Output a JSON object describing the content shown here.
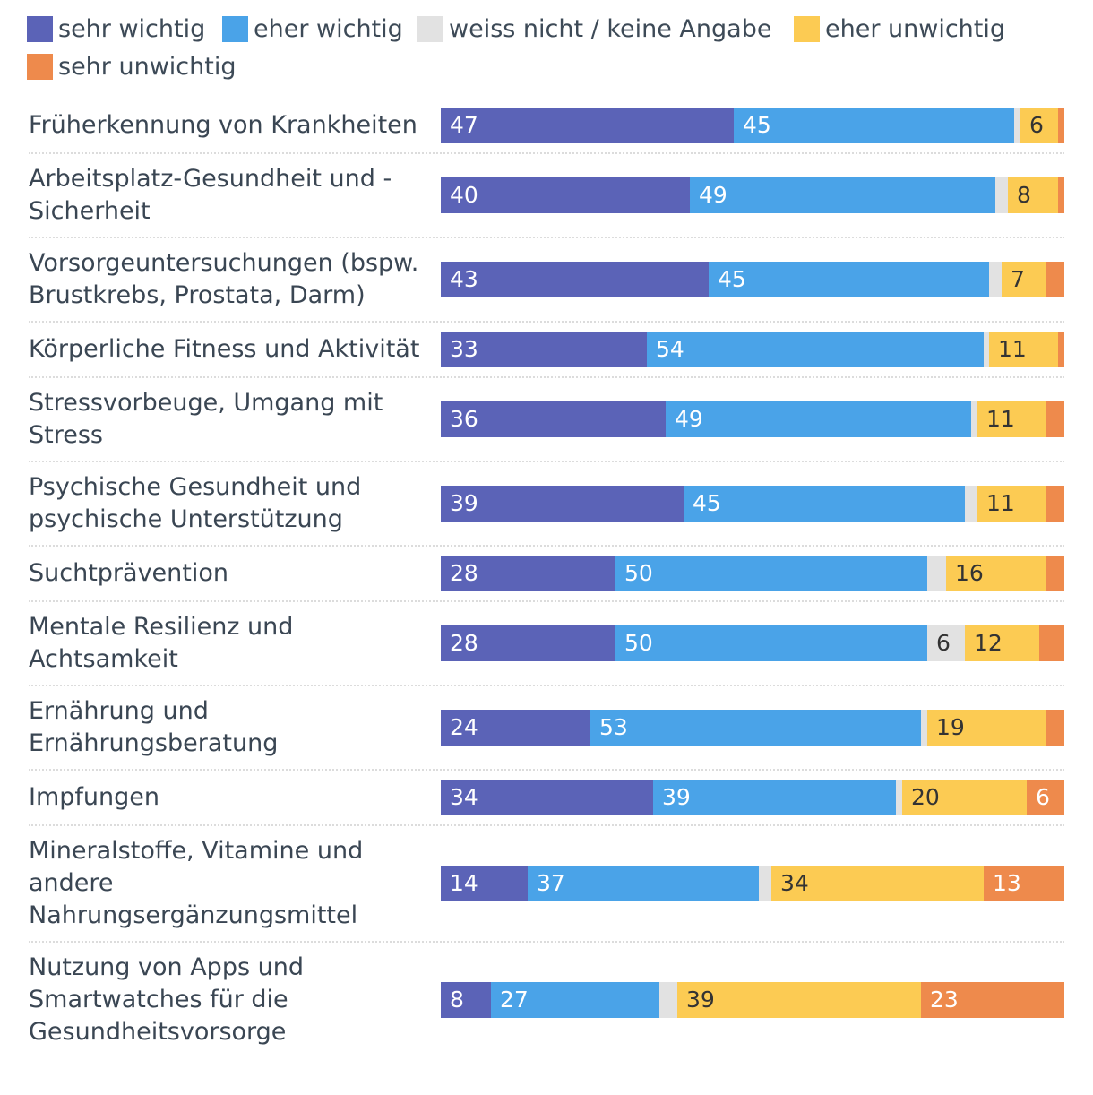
{
  "chart_data": {
    "type": "bar",
    "orientation": "horizontal",
    "stacked": true,
    "legend_position": "top",
    "series": [
      {
        "name": "sehr wichtig",
        "color": "#5b63b7",
        "label_color": "#ffffff",
        "values": [
          47,
          40,
          43,
          33,
          36,
          39,
          28,
          28,
          24,
          34,
          14,
          8
        ]
      },
      {
        "name": "eher wichtig",
        "color": "#4aa3e8",
        "label_color": "#ffffff",
        "values": [
          45,
          49,
          45,
          54,
          49,
          45,
          50,
          50,
          53,
          39,
          37,
          27
        ]
      },
      {
        "name": "weiss nicht / keine Angabe",
        "color": "#e2e2e2",
        "label_color": "#333333",
        "values": [
          1,
          2,
          2,
          1,
          1,
          2,
          3,
          6,
          1,
          1,
          2,
          3
        ]
      },
      {
        "name": "eher unwichtig",
        "color": "#fccb53",
        "label_color": "#333333",
        "values": [
          6,
          8,
          7,
          11,
          11,
          11,
          16,
          12,
          19,
          20,
          34,
          39
        ]
      },
      {
        "name": "sehr unwichtig",
        "color": "#ee8a4c",
        "label_color": "#ffffff",
        "values": [
          1,
          1,
          3,
          1,
          3,
          3,
          3,
          4,
          3,
          6,
          13,
          23
        ]
      }
    ],
    "label_threshold": 5,
    "categories": [
      "Früherkennung von Krankheiten",
      "Arbeitsplatz-Gesundheit und -Sicherheit",
      "Vorsorgeuntersuchungen (bspw. Brustkrebs, Prostata, Darm)",
      "Körperliche Fitness und Aktivität",
      "Stressvorbeuge, Umgang mit Stress",
      "Psychische Gesundheit und psychische Unterstützung",
      "Suchtprävention",
      "Mentale Resilienz und Achtsamkeit",
      "Ernährung und Ernährungsberatung",
      "Impfungen",
      "Mineralstoffe, Vitamine und andere Nahrungsergänzungsmittel",
      "Nutzung von Apps und Smartwatches für die Gesundheitsvorsorge"
    ],
    "title": "",
    "xlabel": "",
    "ylabel": "",
    "xlim": [
      0,
      100
    ],
    "grid": false
  }
}
